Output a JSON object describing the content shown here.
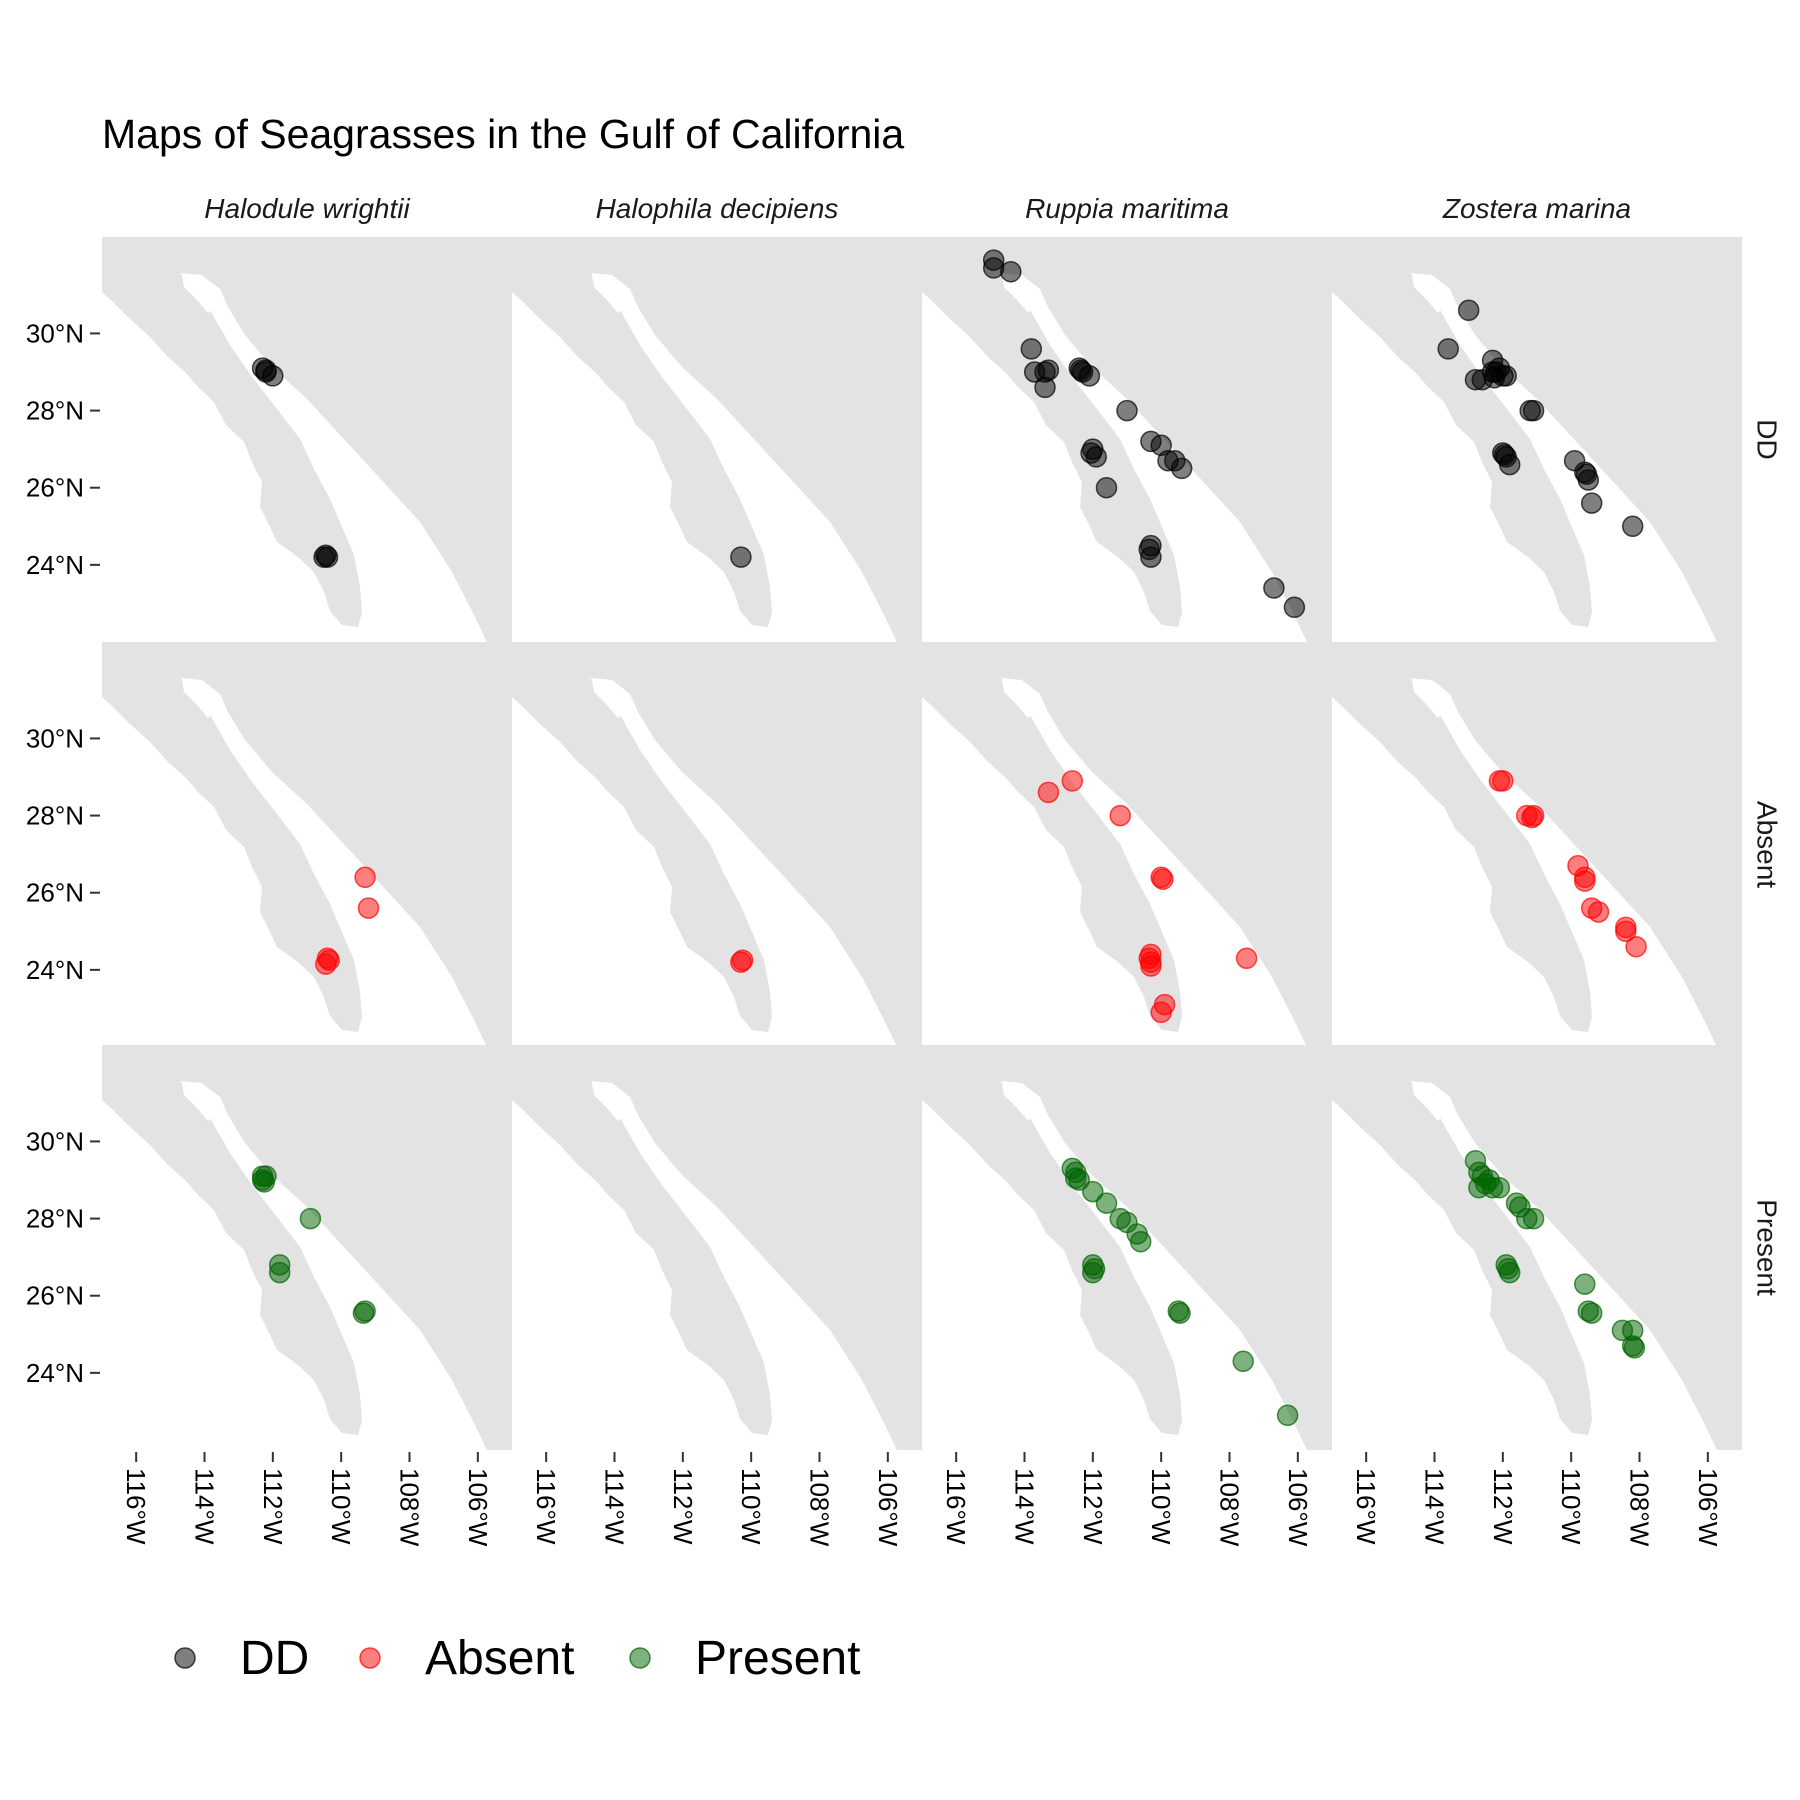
{
  "chart_data": {
    "type": "scatter",
    "title": "Maps of Seagrasses in the Gulf of California",
    "columns": [
      "Halodule wrightii",
      "Halophila decipiens",
      "Ruppia maritima",
      "Zostera marina"
    ],
    "rows": [
      "DD",
      "Absent",
      "Present"
    ],
    "x_ticks": [
      -116,
      -114,
      -112,
      -110,
      -108,
      -106
    ],
    "x_tick_labels": [
      "116°W",
      "114°W",
      "112°W",
      "110°W",
      "108°W",
      "106°W"
    ],
    "y_ticks": [
      30,
      28,
      26,
      24
    ],
    "y_tick_labels": [
      "30°N",
      "28°N",
      "26°N",
      "24°N"
    ],
    "xlim": [
      -117,
      -105
    ],
    "ylim": [
      22.0,
      32.5
    ],
    "grid": false,
    "legend_position": "bottom-left",
    "legend": [
      {
        "key": "DD",
        "label": "DD",
        "color": "#000000"
      },
      {
        "key": "Absent",
        "label": "Absent",
        "color": "#ff0000"
      },
      {
        "key": "Present",
        "label": "Present",
        "color": "#006400"
      }
    ],
    "land_color": "#e3e3e3",
    "point_alpha": 0.5,
    "panels": {
      "DD": {
        "Halodule wrightii": [
          [
            -112.3,
            29.1
          ],
          [
            -112.2,
            29.0
          ],
          [
            -112.0,
            28.9
          ],
          [
            -112.2,
            29.05
          ],
          [
            -110.5,
            24.2
          ],
          [
            -110.4,
            24.2
          ],
          [
            -110.45,
            24.25
          ]
        ],
        "Halophila decipiens": [
          [
            -110.3,
            24.2
          ]
        ],
        "Ruppia maritima": [
          [
            -114.9,
            31.9
          ],
          [
            -114.9,
            31.7
          ],
          [
            -114.4,
            31.6
          ],
          [
            -113.8,
            29.6
          ],
          [
            -113.7,
            29.0
          ],
          [
            -113.4,
            29.0
          ],
          [
            -113.3,
            29.05
          ],
          [
            -113.4,
            28.6
          ],
          [
            -112.4,
            29.1
          ],
          [
            -112.3,
            29.0
          ],
          [
            -112.1,
            28.9
          ],
          [
            -112.35,
            29.05
          ],
          [
            -112.0,
            27.0
          ],
          [
            -111.9,
            26.8
          ],
          [
            -112.05,
            26.9
          ],
          [
            -111.6,
            26.0
          ],
          [
            -111.0,
            28.0
          ],
          [
            -110.3,
            27.2
          ],
          [
            -110.0,
            27.1
          ],
          [
            -109.8,
            26.7
          ],
          [
            -109.6,
            26.7
          ],
          [
            -109.4,
            26.5
          ],
          [
            -110.3,
            24.5
          ],
          [
            -110.3,
            24.2
          ],
          [
            -110.35,
            24.4
          ],
          [
            -106.7,
            23.4
          ],
          [
            -106.1,
            22.9
          ]
        ],
        "Zostera marina": [
          [
            -113.0,
            30.6
          ],
          [
            -113.6,
            29.6
          ],
          [
            -112.8,
            28.8
          ],
          [
            -112.6,
            28.8
          ],
          [
            -112.3,
            29.3
          ],
          [
            -112.3,
            29.0
          ],
          [
            -112.2,
            29.0
          ],
          [
            -112.0,
            28.9
          ],
          [
            -111.9,
            28.9
          ],
          [
            -112.1,
            29.1
          ],
          [
            -112.25,
            28.85
          ],
          [
            -111.2,
            28.0
          ],
          [
            -111.1,
            28.0
          ],
          [
            -112.0,
            26.9
          ],
          [
            -111.9,
            26.8
          ],
          [
            -111.8,
            26.6
          ],
          [
            -111.95,
            26.85
          ],
          [
            -109.9,
            26.7
          ],
          [
            -109.6,
            26.4
          ],
          [
            -109.5,
            26.2
          ],
          [
            -109.55,
            26.35
          ],
          [
            -109.4,
            25.6
          ],
          [
            -108.2,
            25.0
          ]
        ]
      },
      "Absent": {
        "Halodule wrightii": [
          [
            -109.3,
            26.4
          ],
          [
            -109.2,
            25.6
          ],
          [
            -110.4,
            24.3
          ],
          [
            -110.45,
            24.15
          ],
          [
            -110.35,
            24.25
          ]
        ],
        "Halophila decipiens": [
          [
            -110.3,
            24.2
          ],
          [
            -110.25,
            24.25
          ]
        ],
        "Ruppia maritima": [
          [
            -113.3,
            28.6
          ],
          [
            -112.6,
            28.9
          ],
          [
            -111.2,
            28.0
          ],
          [
            -110.0,
            26.4
          ],
          [
            -109.95,
            26.35
          ],
          [
            -110.3,
            24.4
          ],
          [
            -110.3,
            24.2
          ],
          [
            -110.35,
            24.3
          ],
          [
            -110.3,
            24.1
          ],
          [
            -109.9,
            23.1
          ],
          [
            -110.0,
            22.9
          ],
          [
            -107.5,
            24.3
          ]
        ],
        "Zostera marina": [
          [
            -112.1,
            28.9
          ],
          [
            -112.0,
            28.9
          ],
          [
            -111.3,
            28.0
          ],
          [
            -111.1,
            28.0
          ],
          [
            -111.15,
            27.95
          ],
          [
            -109.8,
            26.7
          ],
          [
            -109.6,
            26.4
          ],
          [
            -109.6,
            26.3
          ],
          [
            -109.4,
            25.6
          ],
          [
            -109.2,
            25.5
          ],
          [
            -108.4,
            25.1
          ],
          [
            -108.4,
            25.0
          ],
          [
            -108.1,
            24.6
          ]
        ]
      },
      "Present": {
        "Halodule wrightii": [
          [
            -112.3,
            29.1
          ],
          [
            -112.3,
            29.0
          ],
          [
            -112.2,
            29.1
          ],
          [
            -112.25,
            28.95
          ],
          [
            -110.9,
            28.0
          ],
          [
            -111.8,
            26.8
          ],
          [
            -111.8,
            26.6
          ],
          [
            -109.3,
            25.6
          ],
          [
            -109.35,
            25.55
          ]
        ],
        "Halophila decipiens": [],
        "Ruppia maritima": [
          [
            -112.6,
            29.3
          ],
          [
            -112.5,
            29.2
          ],
          [
            -112.4,
            29.0
          ],
          [
            -112.5,
            29.05
          ],
          [
            -112.0,
            28.7
          ],
          [
            -111.6,
            28.4
          ],
          [
            -111.2,
            28.0
          ],
          [
            -111.0,
            27.9
          ],
          [
            -110.7,
            27.6
          ],
          [
            -110.6,
            27.4
          ],
          [
            -112.0,
            26.8
          ],
          [
            -112.0,
            26.6
          ],
          [
            -111.95,
            26.7
          ],
          [
            -109.5,
            25.6
          ],
          [
            -109.45,
            25.55
          ],
          [
            -107.6,
            24.3
          ],
          [
            -106.3,
            22.9
          ]
        ],
        "Zostera marina": [
          [
            -112.8,
            29.5
          ],
          [
            -112.7,
            29.2
          ],
          [
            -112.6,
            29.1
          ],
          [
            -112.5,
            28.9
          ],
          [
            -112.4,
            29.0
          ],
          [
            -112.3,
            28.8
          ],
          [
            -112.7,
            28.8
          ],
          [
            -112.1,
            28.8
          ],
          [
            -111.6,
            28.4
          ],
          [
            -111.5,
            28.3
          ],
          [
            -111.3,
            28.0
          ],
          [
            -111.1,
            28.0
          ],
          [
            -111.9,
            26.8
          ],
          [
            -111.8,
            26.6
          ],
          [
            -111.85,
            26.7
          ],
          [
            -109.6,
            26.3
          ],
          [
            -109.5,
            25.6
          ],
          [
            -109.4,
            25.55
          ],
          [
            -108.5,
            25.1
          ],
          [
            -108.2,
            25.1
          ],
          [
            -108.2,
            24.7
          ],
          [
            -108.15,
            24.65
          ]
        ]
      }
    }
  }
}
